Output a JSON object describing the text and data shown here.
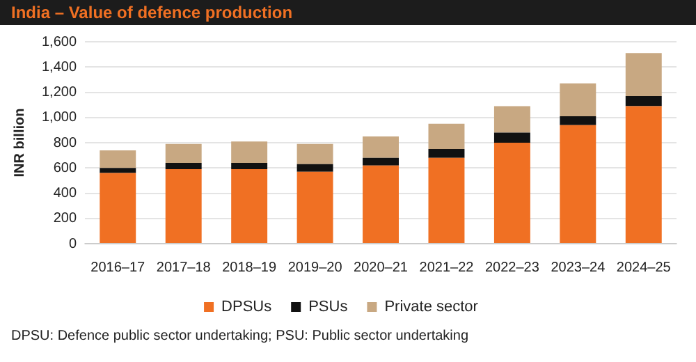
{
  "chart_data": {
    "type": "bar",
    "title": "India – Value of defence production",
    "ylabel": "INR billion",
    "categories": [
      "2016–17",
      "2017–18",
      "2018–19",
      "2019–20",
      "2020–21",
      "2021–22",
      "2022–23",
      "2023–24",
      "2024–25"
    ],
    "series": [
      {
        "name": "DPSUs",
        "color": "#f07023",
        "values": [
          560,
          590,
          590,
          570,
          620,
          680,
          800,
          940,
          1090
        ]
      },
      {
        "name": "PSUs",
        "color": "#111111",
        "values": [
          40,
          50,
          50,
          60,
          60,
          70,
          80,
          70,
          80
        ]
      },
      {
        "name": "Private sector",
        "color": "#c8a882",
        "values": [
          140,
          150,
          170,
          160,
          170,
          200,
          210,
          260,
          340
        ]
      }
    ],
    "stacked": true,
    "ylim": [
      0,
      1600
    ],
    "yticks": [
      0,
      200,
      400,
      600,
      800,
      {
        "value": 1000,
        "label": "1,000"
      },
      {
        "value": 1200,
        "label": "1,200"
      },
      {
        "value": 1400,
        "label": "1,400"
      },
      {
        "value": 1600,
        "label": "1,600"
      }
    ],
    "grid": "y",
    "legend": "bottom",
    "annotations": [
      "DPSU:  Defence public sector undertaking; PSU: Public sector undertaking"
    ]
  }
}
